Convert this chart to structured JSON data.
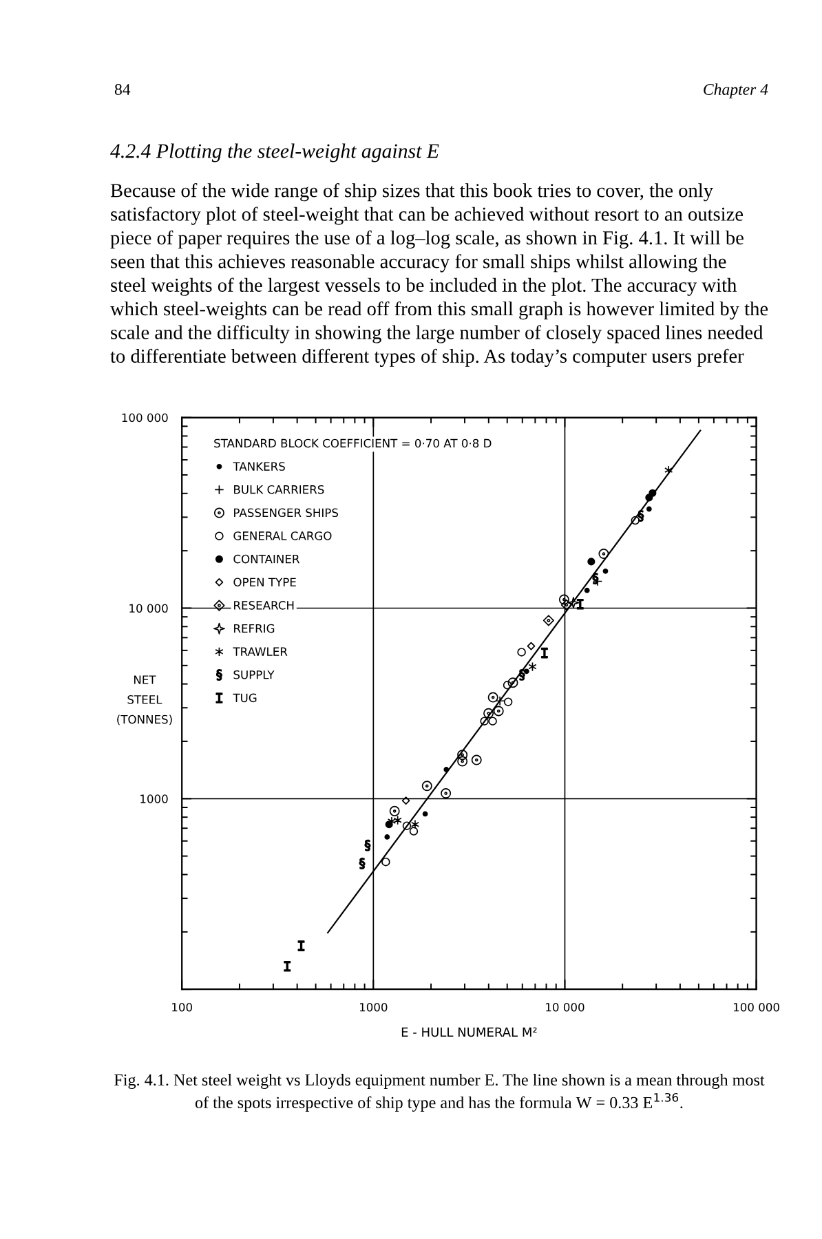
{
  "chart_data": {
    "type": "scatter",
    "annotations": [
      "84",
      "Chapter 4",
      "4.2.4 Plotting the steel-weight against E",
      "Because of the wide range of ship sizes that this book tries to cover, the only\nsatisfactory plot of steel-weight that can be achieved without resort to an outsize\npiece of paper requires the use of a log–log scale, as shown in Fig. 4.1. It will be\nseen that this achieves reasonable accuracy for small ships whilst allowing the\nsteel weights of the largest vessels to be included in the plot. The accuracy with\nwhich steel-weights can be read off from this small graph is however limited by the\nscale and the difficulty in showing the large number of closely spaced lines needed\nto differentiate between different types of ship. As today’s computer users prefer",
      "Fig. 4.1. Net steel weight vs Lloyds equipment number E. The line shown is a mean through most\nof the spots irrespective of ship type and has the formula W = 0.33 E$^{1.36}$."
    ],
    "xlabel": "E - HULL NUMERAL M²",
    "ylabel": "NET\nSTEEL\n(TONNES)",
    "legend_title": "STANDARD BLOCK COEFFICIENT = 0·70 AT 0·8 D",
    "legend": "top left",
    "log": "xy",
    "grid": true,
    "xlim": [
      100,
      100000
    ],
    "ylim": [
      100,
      100000
    ],
    "xticks": [
      100,
      1000,
      {
        "value": 10000,
        "label": "10 000"
      },
      {
        "value": 100000,
        "label": "100 000"
      }
    ],
    "yticks": [
      {
        "value": 100,
        "label": null
      },
      1000,
      {
        "value": 10000,
        "label": "10 000"
      },
      {
        "value": 100000,
        "label": "100 000"
      }
    ],
    "series": [
      {
        "name": "TANKERS",
        "marker": "circle",
        "color": "#000000",
        "x": [
          1180,
          1865,
          2404,
          6310,
          13060,
          16300,
          27540
        ],
        "values": [
          630,
          832,
          1422,
          4660,
          12390,
          15630,
          33110
        ]
      },
      {
        "name": "BULK CARRIERS",
        "marker": "cross",
        "color": "#000000",
        "x": [
          4581,
          14830
        ],
        "values": [
          3260,
          13830
        ]
      },
      {
        "name": "PASSENGER SHIPS",
        "marker": "circle",
        "color": "#000000",
        "x": [
          1291,
          1906,
          2391,
          2917,
          2917,
          3459,
          3993,
          4508,
          4217,
          5353,
          9910,
          15960
        ],
        "values": [
          861,
          1167,
          1067,
          1698,
          1571,
          1597,
          2806,
          2884,
          3404,
          4064,
          11090,
          19280
        ]
      },
      {
        "name": "GENERAL CARGO",
        "marker": "circle",
        "color": "#000000",
        "x": [
          1161,
          1496,
          1625,
          3802,
          4198,
          5058,
          5012,
          5944,
          23330
        ],
        "values": [
          466,
          721,
          675,
          2553,
          2553,
          3222,
          3945,
          5875,
          28840
        ]
      },
      {
        "name": "CONTAINER",
        "marker": "circle",
        "color": "#000000",
        "x": [
          1208,
          13740,
          27540,
          28710
        ],
        "values": [
          733,
          17540,
          38010,
          40180
        ]
      },
      {
        "name": "OPEN TYPE",
        "marker": "diamond",
        "color": "#000000",
        "x": [
          1479,
          6668
        ],
        "values": [
          977,
          6324
        ]
      },
      {
        "name": "RESEARCH",
        "marker": "diamond",
        "color": "#000000",
        "x": [
          8225,
          10200
        ],
        "values": [
          8610,
          10390
        ]
      },
      {
        "name": "REFRIG",
        "marker": "star",
        "color": "#000000",
        "x": [
          11090
        ],
        "values": [
          10670
        ]
      },
      {
        "name": "TRAWLER",
        "marker": "cross",
        "color": "#000000",
        "x": [
          1247,
          1340,
          1652,
          6776,
          34830
        ],
        "values": [
          762,
          771,
          733,
          4928,
          52970
        ]
      },
      {
        "name": "SUPPLY",
        "color": "#000000",
        "x": [
          874,
          933,
          5970,
          14450,
          24950
        ],
        "values": [
          457,
          569,
          4467,
          14290,
          30480
        ]
      },
      {
        "name": "TUG",
        "color": "#000000",
        "x": [
          355,
          420,
          7830,
          12030
        ],
        "values": [
          132,
          169,
          5816,
          10490
        ]
      },
      {
        "type": "line",
        "color": "#000000",
        "x": [
          578,
          51000
        ],
        "values": [
          198,
          85500
        ]
      }
    ]
  }
}
